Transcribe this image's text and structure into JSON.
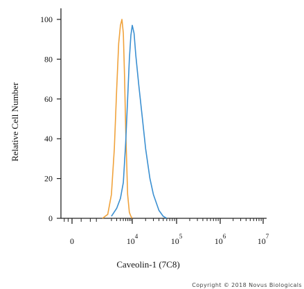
{
  "chart_data": {
    "type": "line",
    "title": "",
    "xlabel": "Caveolin-1 (7C8)",
    "ylabel": "Relative Cell Number",
    "x_scale": "biexponential",
    "ylim": [
      0,
      105
    ],
    "y_ticks": [
      0,
      20,
      40,
      60,
      80,
      100
    ],
    "y_tick_labels": [
      "0",
      "20",
      "40",
      "60",
      "80",
      "100"
    ],
    "x_ticks": [
      {
        "base": "0",
        "exp": ""
      },
      {
        "base": "10",
        "exp": "4"
      },
      {
        "base": "10",
        "exp": "5"
      },
      {
        "base": "10",
        "exp": "6"
      },
      {
        "base": "10",
        "exp": "7"
      }
    ],
    "grid": false,
    "legend": "none",
    "series": [
      {
        "color": "#f0a23b",
        "x": [
          1000,
          1500,
          2000,
          2500,
          3000,
          3500,
          4000,
          4500,
          5000,
          5500,
          6000,
          7000,
          8000,
          9000,
          10000
        ],
        "y": [
          0,
          2,
          12,
          35,
          65,
          88,
          97,
          100,
          93,
          72,
          45,
          12,
          3,
          1,
          0
        ]
      },
      {
        "color": "#3a8fd1",
        "x": [
          2000,
          3000,
          4000,
          5000,
          6000,
          7000,
          8000,
          9000,
          10000,
          11000,
          12000,
          14000,
          17000,
          20000,
          25000,
          30000,
          40000,
          50000,
          60000
        ],
        "y": [
          1,
          5,
          10,
          18,
          38,
          60,
          80,
          92,
          97,
          93,
          82,
          67,
          50,
          35,
          20,
          12,
          4,
          1,
          0
        ]
      }
    ]
  },
  "footer": {
    "copyright": "Copyright © 2018 Novus Biologicals"
  }
}
